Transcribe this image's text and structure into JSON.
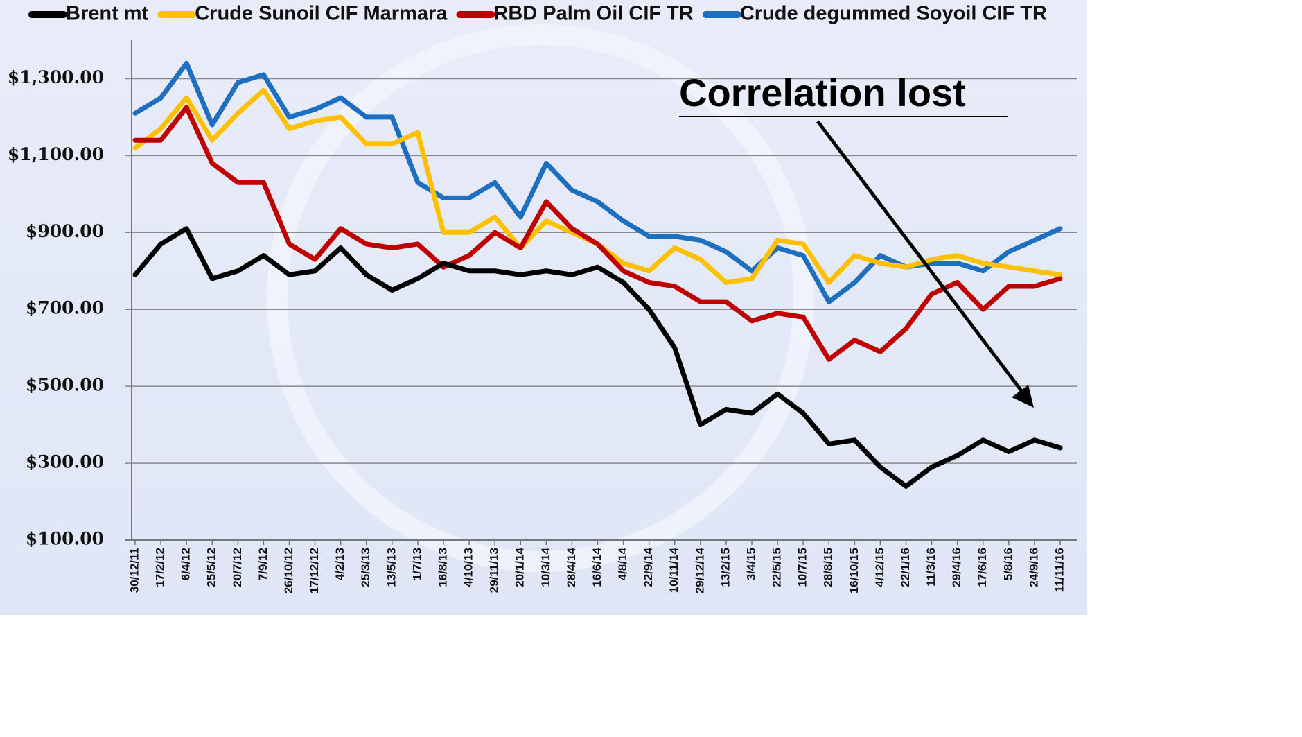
{
  "chart_data": {
    "type": "line",
    "annotation": "Correlation lost",
    "categories": [
      "30/12/11",
      "17/2/12",
      "6/4/12",
      "25/5/12",
      "20/7/12",
      "7/9/12",
      "26/10/12",
      "17/12/12",
      "4/2/13",
      "25/3/13",
      "13/5/13",
      "1/7/13",
      "16/8/13",
      "4/10/13",
      "29/11/13",
      "20/1/14",
      "10/3/14",
      "28/4/14",
      "16/6/14",
      "4/8/14",
      "22/9/14",
      "10/11/14",
      "29/12/14",
      "13/2/15",
      "3/4/15",
      "22/5/15",
      "10/7/15",
      "28/8/15",
      "16/10/15",
      "4/12/15",
      "22/1/16",
      "11/3/16",
      "29/4/16",
      "17/6/16",
      "5/8/16",
      "24/9/16",
      "11/11/16"
    ],
    "series": [
      {
        "name": "Brent mt",
        "color": "#000000",
        "values": [
          790,
          870,
          910,
          780,
          800,
          840,
          790,
          800,
          860,
          790,
          750,
          780,
          820,
          800,
          800,
          790,
          800,
          790,
          810,
          770,
          700,
          600,
          400,
          440,
          430,
          480,
          430,
          350,
          360,
          290,
          240,
          290,
          320,
          360,
          330,
          360,
          340
        ]
      },
      {
        "name": "Crude Sunoil CIF Marmara",
        "color": "#ffc000",
        "values": [
          1120,
          1170,
          1250,
          1140,
          1210,
          1270,
          1170,
          1190,
          1200,
          1130,
          1130,
          1160,
          900,
          900,
          940,
          860,
          930,
          900,
          870,
          820,
          800,
          860,
          830,
          770,
          780,
          880,
          870,
          770,
          840,
          820,
          810,
          830,
          840,
          820,
          810,
          800,
          790
        ]
      },
      {
        "name": "RBD Palm Oil CIF TR",
        "color": "#c00000",
        "values": [
          1140,
          1140,
          1225,
          1080,
          1030,
          1030,
          870,
          830,
          910,
          870,
          860,
          870,
          810,
          840,
          900,
          860,
          980,
          910,
          870,
          800,
          770,
          760,
          720,
          720,
          670,
          690,
          680,
          570,
          620,
          590,
          650,
          740,
          770,
          700,
          760,
          760,
          780
        ]
      },
      {
        "name": "Crude degummed Soyoil CIF TR",
        "color": "#1f6fc0",
        "values": [
          1210,
          1250,
          1340,
          1180,
          1290,
          1310,
          1200,
          1220,
          1250,
          1200,
          1200,
          1030,
          990,
          990,
          1030,
          940,
          1080,
          1010,
          980,
          930,
          890,
          890,
          880,
          850,
          800,
          860,
          840,
          720,
          770,
          840,
          810,
          820,
          820,
          800,
          850,
          880,
          910
        ]
      }
    ],
    "ylim": [
      100,
      1400
    ],
    "yticks": [
      {
        "value": 100,
        "label": "$100.00"
      },
      {
        "value": 300,
        "label": "$300.00"
      },
      {
        "value": 500,
        "label": "$500.00"
      },
      {
        "value": 700,
        "label": "$700.00"
      },
      {
        "value": 900,
        "label": "$900.00"
      },
      {
        "value": 1100,
        "label": "$1,100.00"
      },
      {
        "value": 1300,
        "label": "$1,300.00"
      }
    ],
    "grid": true
  }
}
